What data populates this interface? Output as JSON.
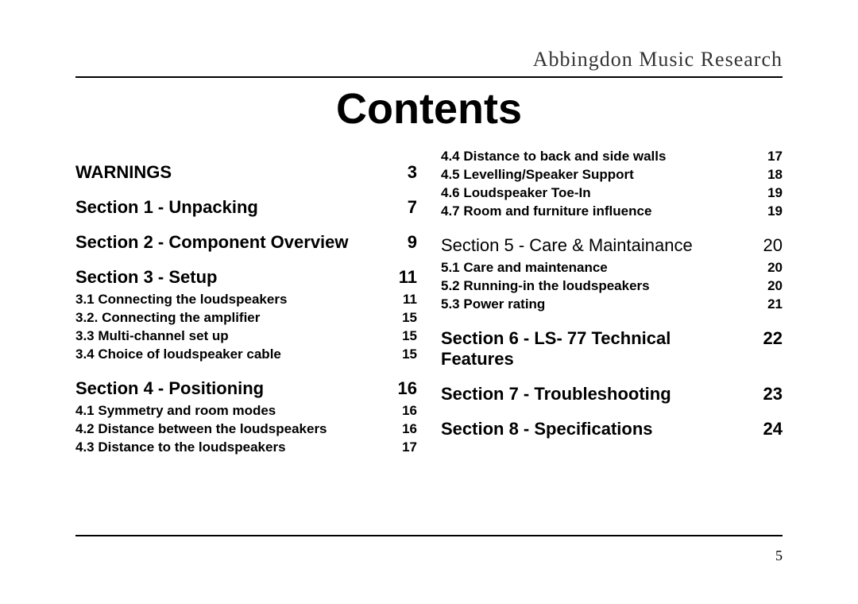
{
  "brand": "Abbingdon Music Research",
  "title": "Contents",
  "page_number": "5",
  "left_column": [
    {
      "kind": "section",
      "label": "WARNINGS",
      "page": "3"
    },
    {
      "kind": "section",
      "label": "Section 1 - Unpacking",
      "page": "7"
    },
    {
      "kind": "section",
      "label": "Section 2 - Component Overview",
      "page": "9"
    },
    {
      "kind": "section",
      "label": "Section 3 - Setup",
      "page": "11"
    },
    {
      "kind": "sub",
      "label": "3.1 Connecting the loudspeakers",
      "page": "11"
    },
    {
      "kind": "sub",
      "label": "3.2. Connecting the amplifier",
      "page": "15"
    },
    {
      "kind": "sub",
      "label": "3.3 Multi-channel set up",
      "page": "15"
    },
    {
      "kind": "sub",
      "label": "3.4 Choice of loudspeaker cable",
      "page": "15"
    },
    {
      "kind": "section",
      "label": "Section 4 - Positioning",
      "page": "16"
    },
    {
      "kind": "sub",
      "label": "4.1 Symmetry and room modes",
      "page": "16"
    },
    {
      "kind": "sub",
      "label": "4.2 Distance between the loudspeakers",
      "page": "16"
    },
    {
      "kind": "sub",
      "label": "4.3 Distance to the loudspeakers",
      "page": "17"
    }
  ],
  "right_column": [
    {
      "kind": "sub",
      "label": "4.4 Distance to back and side walls",
      "page": "17"
    },
    {
      "kind": "sub",
      "label": "4.5 Levelling/Speaker Support",
      "page": "18"
    },
    {
      "kind": "sub",
      "label": "4.6 Loudspeaker Toe-In",
      "page": "19"
    },
    {
      "kind": "sub",
      "label": "4.7 Room and furniture influence",
      "page": "19"
    },
    {
      "kind": "section-light",
      "label": "Section 5 - Care & Maintainance",
      "page": "20"
    },
    {
      "kind": "sub",
      "label": "5.1 Care and maintenance",
      "page": "20"
    },
    {
      "kind": "sub",
      "label": "5.2 Running-in the loudspeakers",
      "page": "20"
    },
    {
      "kind": "sub",
      "label": "5.3 Power rating",
      "page": "21"
    },
    {
      "kind": "section",
      "label": "Section 6 -  LS- 77 Technical Features",
      "page": "22"
    },
    {
      "kind": "section",
      "label": "Section 7 - Troubleshooting",
      "page": "23"
    },
    {
      "kind": "section",
      "label": "Section 8 - Specifications",
      "page": "24"
    }
  ]
}
